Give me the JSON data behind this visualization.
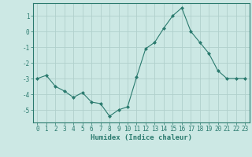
{
  "x": [
    0,
    1,
    2,
    3,
    4,
    5,
    6,
    7,
    8,
    9,
    10,
    11,
    12,
    13,
    14,
    15,
    16,
    17,
    18,
    19,
    20,
    21,
    22,
    23
  ],
  "y": [
    -3.0,
    -2.8,
    -3.5,
    -3.8,
    -4.2,
    -3.9,
    -4.5,
    -4.6,
    -5.4,
    -5.0,
    -4.8,
    -2.9,
    -1.1,
    -0.7,
    0.2,
    1.0,
    1.5,
    0.0,
    -0.7,
    -1.4,
    -2.5,
    -3.0,
    -3.0,
    -3.0
  ],
  "line_color": "#2a7a6e",
  "marker": "D",
  "marker_size": 2,
  "bg_color": "#cce8e4",
  "grid_color": "#b0d0cc",
  "xlabel": "Humidex (Indice chaleur)",
  "ylim": [
    -5.8,
    1.8
  ],
  "yticks": [
    -5,
    -4,
    -3,
    -2,
    -1,
    0,
    1
  ],
  "xticks": [
    0,
    1,
    2,
    3,
    4,
    5,
    6,
    7,
    8,
    9,
    10,
    11,
    12,
    13,
    14,
    15,
    16,
    17,
    18,
    19,
    20,
    21,
    22,
    23
  ],
  "tick_color": "#2a7a6e",
  "axis_color": "#2a7a6e",
  "label_fontsize": 6.5,
  "tick_fontsize": 5.5
}
